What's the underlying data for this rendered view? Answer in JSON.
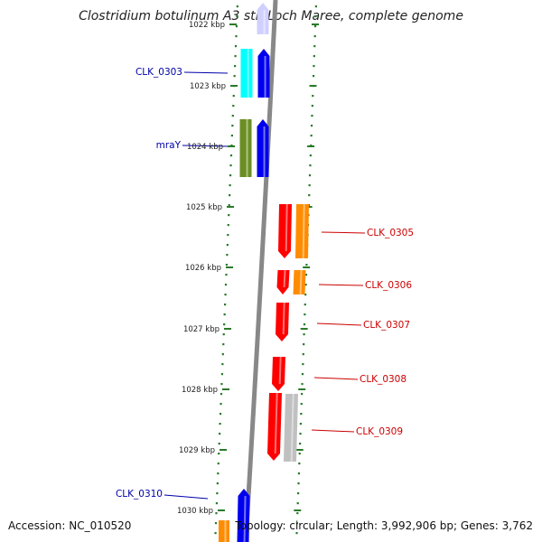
{
  "title": "Clostridium botulinum A3 str. Loch Maree, complete genome",
  "footer": {
    "accession": "Accession: NC_010520",
    "topology": "Topology: circular; Length: 3,992,906 bp; Genes: 3,762"
  },
  "colors": {
    "forward_label": "#0000aa",
    "reverse_label": "#cc0000",
    "tick": "#2a7a2a",
    "backbone": "#888888",
    "blue": "#0000ee",
    "cyan": "#00ffff",
    "olive": "#6b8e23",
    "red": "#ff0000",
    "orange": "#ff8c00",
    "gray": "#c0c0c0",
    "faded_blue": "#d0d0ff"
  },
  "ruler_labels": [
    "1022 kbp",
    "1023 kbp",
    "1024 kbp",
    "1025 kbp",
    "1026 kbp",
    "1027 kbp",
    "1028 kbp",
    "1029 kbp",
    "1030 kbp"
  ],
  "gene_labels": [
    {
      "text": "CLK_0303",
      "strand": "forward"
    },
    {
      "text": "mraY",
      "strand": "forward"
    },
    {
      "text": "CLK_0305",
      "strand": "reverse"
    },
    {
      "text": "CLK_0306",
      "strand": "reverse"
    },
    {
      "text": "CLK_0307",
      "strand": "reverse"
    },
    {
      "text": "CLK_0308",
      "strand": "reverse"
    },
    {
      "text": "CLK_0309",
      "strand": "reverse"
    },
    {
      "text": "CLK_0310",
      "strand": "forward"
    }
  ]
}
